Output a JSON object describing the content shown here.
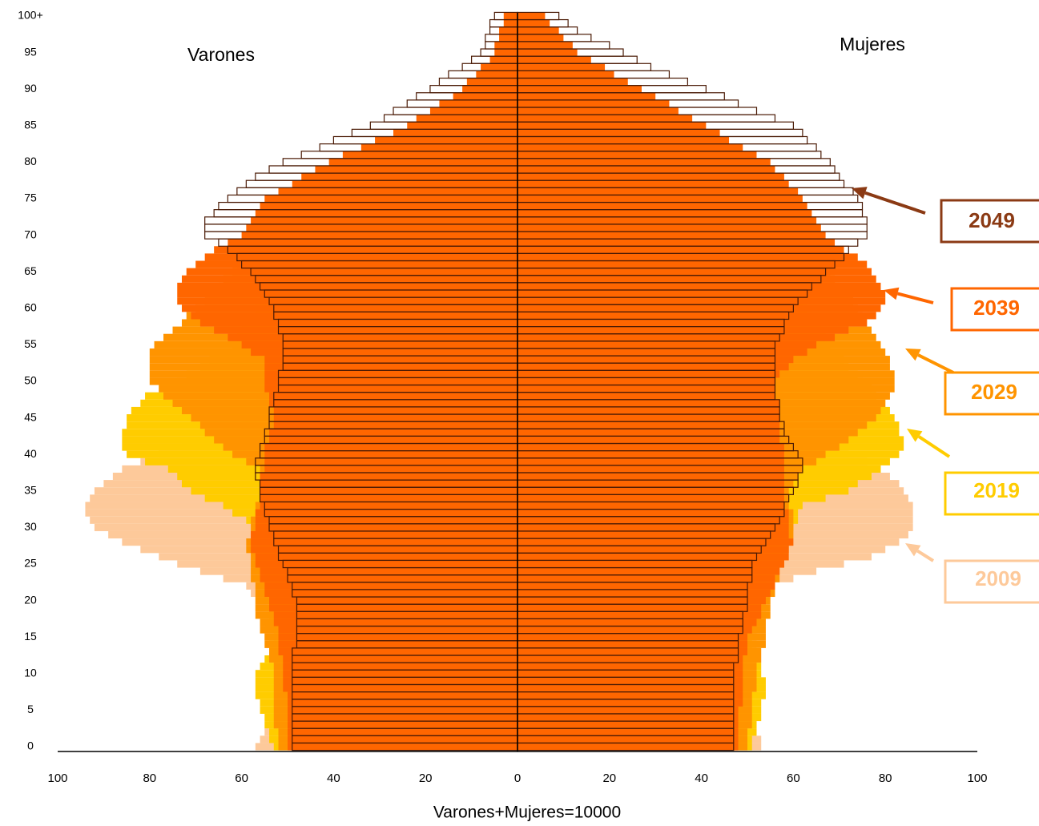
{
  "chart_data": {
    "type": "pyramid",
    "left_label": "Varones",
    "right_label": "Mujeres",
    "xlabel": "Varones+Mujeres=10000",
    "xlim": [
      -100,
      100
    ],
    "xticks": [
      {
        "value": -100,
        "label": "100"
      },
      {
        "value": -80,
        "label": "80"
      },
      {
        "value": -60,
        "label": "60"
      },
      {
        "value": -40,
        "label": "40"
      },
      {
        "value": -20,
        "label": "20"
      },
      0,
      20,
      40,
      60,
      80,
      100
    ],
    "categories": [
      "0",
      null,
      null,
      null,
      null,
      "5",
      null,
      null,
      null,
      null,
      "10",
      null,
      null,
      null,
      null,
      "15",
      null,
      null,
      null,
      null,
      "20",
      null,
      null,
      null,
      null,
      "25",
      null,
      null,
      null,
      null,
      "30",
      null,
      null,
      null,
      null,
      "35",
      null,
      null,
      null,
      null,
      "40",
      null,
      null,
      null,
      null,
      "45",
      null,
      null,
      null,
      null,
      "50",
      null,
      null,
      null,
      null,
      "55",
      null,
      null,
      null,
      null,
      "60",
      null,
      null,
      null,
      null,
      "65",
      null,
      null,
      null,
      null,
      "70",
      null,
      null,
      null,
      null,
      "75",
      null,
      null,
      null,
      null,
      "80",
      null,
      null,
      null,
      null,
      "85",
      null,
      null,
      null,
      null,
      "90",
      null,
      null,
      null,
      null,
      "95",
      null,
      null,
      null,
      null,
      "100+"
    ],
    "series": [
      {
        "name": "2009",
        "color": "#fdc99a",
        "outline": false,
        "male": [
          57,
          56,
          55,
          54,
          54,
          53,
          53,
          53,
          52,
          52,
          52,
          53,
          53,
          54,
          54,
          55,
          55,
          56,
          56,
          57,
          57,
          58,
          59,
          64,
          69,
          74,
          78,
          82,
          86,
          89,
          92,
          93,
          94,
          94,
          93,
          92,
          90,
          88,
          86,
          82,
          78,
          73,
          67,
          64,
          60,
          59,
          57,
          57,
          56,
          56,
          55,
          55,
          54,
          54,
          53,
          53,
          52,
          51,
          50,
          49,
          48,
          47,
          46,
          44,
          43,
          42,
          41,
          39,
          38,
          36,
          35,
          33,
          32,
          30,
          29,
          27,
          25,
          24,
          22,
          21,
          19,
          17,
          16,
          14,
          13,
          11,
          10,
          8,
          7,
          6,
          5,
          4,
          4,
          3,
          3,
          2,
          2,
          2,
          1,
          1,
          1
        ],
        "female": [
          53,
          53,
          52,
          52,
          51,
          51,
          51,
          51,
          50,
          50,
          50,
          50,
          51,
          51,
          52,
          52,
          52,
          53,
          53,
          54,
          54,
          55,
          56,
          60,
          65,
          71,
          77,
          80,
          83,
          85,
          86,
          86,
          86,
          86,
          85,
          84,
          83,
          81,
          79,
          76,
          72,
          68,
          63,
          62,
          60,
          59,
          58,
          58,
          58,
          57,
          57,
          57,
          57,
          56,
          56,
          56,
          55,
          55,
          54,
          54,
          53,
          52,
          51,
          51,
          50,
          49,
          48,
          47,
          46,
          45,
          44,
          43,
          42,
          40,
          39,
          38,
          36,
          35,
          33,
          32,
          30,
          28,
          26,
          24,
          22,
          20,
          18,
          16,
          15,
          13,
          11,
          10,
          9,
          7,
          6,
          5,
          5,
          4,
          4,
          3,
          3
        ]
      },
      {
        "name": "2019",
        "color": "#ffcc00",
        "outline": false,
        "male": [
          53,
          54,
          54,
          55,
          55,
          56,
          56,
          57,
          57,
          57,
          57,
          56,
          55,
          54,
          54,
          53,
          53,
          53,
          54,
          54,
          54,
          54,
          55,
          55,
          55,
          55,
          55,
          56,
          56,
          57,
          57,
          59,
          62,
          64,
          68,
          71,
          73,
          74,
          76,
          81,
          85,
          86,
          86,
          86,
          85,
          85,
          84,
          82,
          81,
          78,
          74,
          72,
          69,
          67,
          64,
          62,
          61,
          60,
          59,
          58,
          57,
          56,
          55,
          54,
          53,
          52,
          51,
          50,
          48,
          47,
          46,
          44,
          43,
          41,
          40,
          38,
          36,
          34,
          32,
          30,
          28,
          26,
          24,
          21,
          19,
          17,
          15,
          13,
          11,
          10,
          8,
          7,
          6,
          5,
          4,
          3,
          3,
          2,
          2,
          1,
          1
        ],
        "female": [
          51,
          51,
          52,
          52,
          53,
          53,
          53,
          54,
          54,
          54,
          53,
          53,
          52,
          52,
          51,
          51,
          51,
          52,
          52,
          53,
          53,
          54,
          54,
          55,
          55,
          56,
          57,
          58,
          58,
          59,
          60,
          61,
          61,
          62,
          67,
          72,
          74,
          77,
          79,
          81,
          83,
          84,
          84,
          83,
          83,
          82,
          81,
          80,
          78,
          77,
          75,
          74,
          72,
          71,
          69,
          68,
          67,
          66,
          65,
          64,
          63,
          62,
          61,
          61,
          60,
          59,
          58,
          57,
          56,
          55,
          54,
          53,
          51,
          50,
          48,
          47,
          45,
          43,
          42,
          40,
          38,
          36,
          34,
          31,
          29,
          27,
          25,
          23,
          20,
          18,
          16,
          14,
          12,
          11,
          9,
          7,
          6,
          6,
          5,
          5,
          4
        ]
      },
      {
        "name": "2029",
        "color": "#ff9400",
        "outline": false,
        "male": [
          52,
          52,
          52,
          53,
          53,
          53,
          53,
          53,
          53,
          53,
          53,
          53,
          54,
          54,
          55,
          55,
          56,
          56,
          57,
          57,
          57,
          57,
          57,
          58,
          58,
          58,
          58,
          59,
          59,
          58,
          58,
          58,
          57,
          57,
          56,
          56,
          56,
          56,
          56,
          59,
          62,
          64,
          66,
          68,
          69,
          71,
          73,
          75,
          77,
          78,
          80,
          80,
          80,
          80,
          80,
          79,
          77,
          75,
          73,
          72,
          70,
          68,
          67,
          65,
          64,
          62,
          61,
          59,
          58,
          56,
          55,
          53,
          51,
          50,
          48,
          46,
          44,
          41,
          39,
          36,
          34,
          32,
          29,
          27,
          24,
          22,
          20,
          17,
          15,
          12,
          10,
          9,
          8,
          6,
          5,
          4,
          4,
          3,
          3,
          2,
          2
        ],
        "female": [
          50,
          50,
          50,
          51,
          51,
          51,
          51,
          51,
          52,
          52,
          52,
          52,
          53,
          53,
          54,
          54,
          54,
          54,
          55,
          55,
          55,
          56,
          56,
          57,
          57,
          58,
          58,
          59,
          59,
          60,
          60,
          60,
          60,
          59,
          59,
          59,
          60,
          61,
          62,
          65,
          67,
          70,
          72,
          74,
          76,
          78,
          79,
          80,
          81,
          82,
          82,
          82,
          81,
          81,
          80,
          79,
          78,
          77,
          76,
          75,
          74,
          73,
          72,
          70,
          69,
          68,
          67,
          66,
          64,
          63,
          62,
          61,
          60,
          58,
          57,
          56,
          55,
          54,
          52,
          51,
          50,
          48,
          45,
          43,
          40,
          38,
          34,
          31,
          27,
          24,
          20,
          18,
          15,
          13,
          10,
          8,
          7,
          6,
          5,
          4,
          3
        ]
      },
      {
        "name": "2039",
        "color": "#ff6600",
        "outline": false,
        "male": [
          50,
          50,
          50,
          50,
          50,
          50,
          50,
          50,
          51,
          51,
          51,
          51,
          51,
          52,
          52,
          52,
          52,
          53,
          53,
          54,
          54,
          55,
          55,
          56,
          56,
          57,
          57,
          58,
          58,
          58,
          57,
          57,
          57,
          56,
          56,
          56,
          56,
          56,
          55,
          55,
          55,
          55,
          54,
          54,
          53,
          53,
          53,
          54,
          54,
          55,
          55,
          55,
          55,
          55,
          58,
          60,
          63,
          66,
          69,
          71,
          73,
          74,
          74,
          74,
          73,
          72,
          70,
          68,
          66,
          63,
          60,
          59,
          58,
          57,
          56,
          55,
          52,
          49,
          47,
          44,
          41,
          38,
          34,
          31,
          27,
          24,
          22,
          19,
          17,
          14,
          12,
          11,
          9,
          8,
          6,
          5,
          5,
          4,
          4,
          3,
          3
        ],
        "female": [
          48,
          48,
          48,
          48,
          48,
          48,
          49,
          49,
          49,
          49,
          49,
          49,
          49,
          50,
          50,
          50,
          51,
          52,
          53,
          53,
          54,
          55,
          56,
          56,
          57,
          58,
          59,
          59,
          60,
          59,
          59,
          59,
          59,
          58,
          58,
          58,
          58,
          58,
          58,
          58,
          58,
          58,
          57,
          57,
          57,
          57,
          57,
          57,
          56,
          56,
          56,
          57,
          59,
          60,
          63,
          65,
          69,
          72,
          76,
          78,
          79,
          80,
          80,
          79,
          78,
          77,
          76,
          74,
          71,
          69,
          67,
          66,
          65,
          64,
          63,
          62,
          61,
          59,
          58,
          56,
          55,
          52,
          49,
          46,
          44,
          41,
          38,
          35,
          33,
          30,
          27,
          24,
          21,
          19,
          16,
          13,
          12,
          10,
          9,
          7,
          6
        ]
      },
      {
        "name": "2049",
        "color": "#8b3a14",
        "outline": true,
        "male": [
          49,
          49,
          49,
          49,
          49,
          49,
          49,
          49,
          49,
          49,
          49,
          49,
          49,
          49,
          48,
          48,
          48,
          48,
          48,
          48,
          48,
          49,
          49,
          50,
          50,
          51,
          52,
          52,
          53,
          53,
          54,
          54,
          55,
          55,
          56,
          56,
          56,
          57,
          57,
          57,
          56,
          56,
          55,
          55,
          54,
          54,
          54,
          53,
          53,
          52,
          52,
          52,
          51,
          51,
          51,
          51,
          51,
          52,
          52,
          53,
          53,
          54,
          55,
          56,
          57,
          58,
          60,
          61,
          63,
          65,
          68,
          68,
          68,
          66,
          65,
          63,
          61,
          59,
          57,
          54,
          51,
          47,
          43,
          40,
          36,
          32,
          29,
          27,
          24,
          22,
          19,
          17,
          15,
          12,
          10,
          8,
          7,
          7,
          6,
          6,
          5
        ],
        "female": [
          47,
          47,
          47,
          47,
          47,
          47,
          47,
          47,
          47,
          47,
          47,
          47,
          48,
          48,
          48,
          48,
          49,
          49,
          49,
          50,
          50,
          50,
          50,
          51,
          51,
          51,
          52,
          53,
          54,
          55,
          56,
          57,
          58,
          58,
          59,
          60,
          61,
          61,
          62,
          62,
          61,
          60,
          59,
          58,
          58,
          57,
          57,
          57,
          56,
          56,
          56,
          56,
          56,
          56,
          56,
          56,
          57,
          58,
          58,
          59,
          60,
          61,
          63,
          64,
          66,
          67,
          69,
          71,
          72,
          74,
          76,
          76,
          76,
          75,
          75,
          74,
          73,
          71,
          70,
          69,
          68,
          66,
          65,
          63,
          62,
          60,
          56,
          52,
          48,
          45,
          41,
          37,
          33,
          29,
          26,
          23,
          20,
          16,
          13,
          11,
          9
        ]
      }
    ]
  }
}
